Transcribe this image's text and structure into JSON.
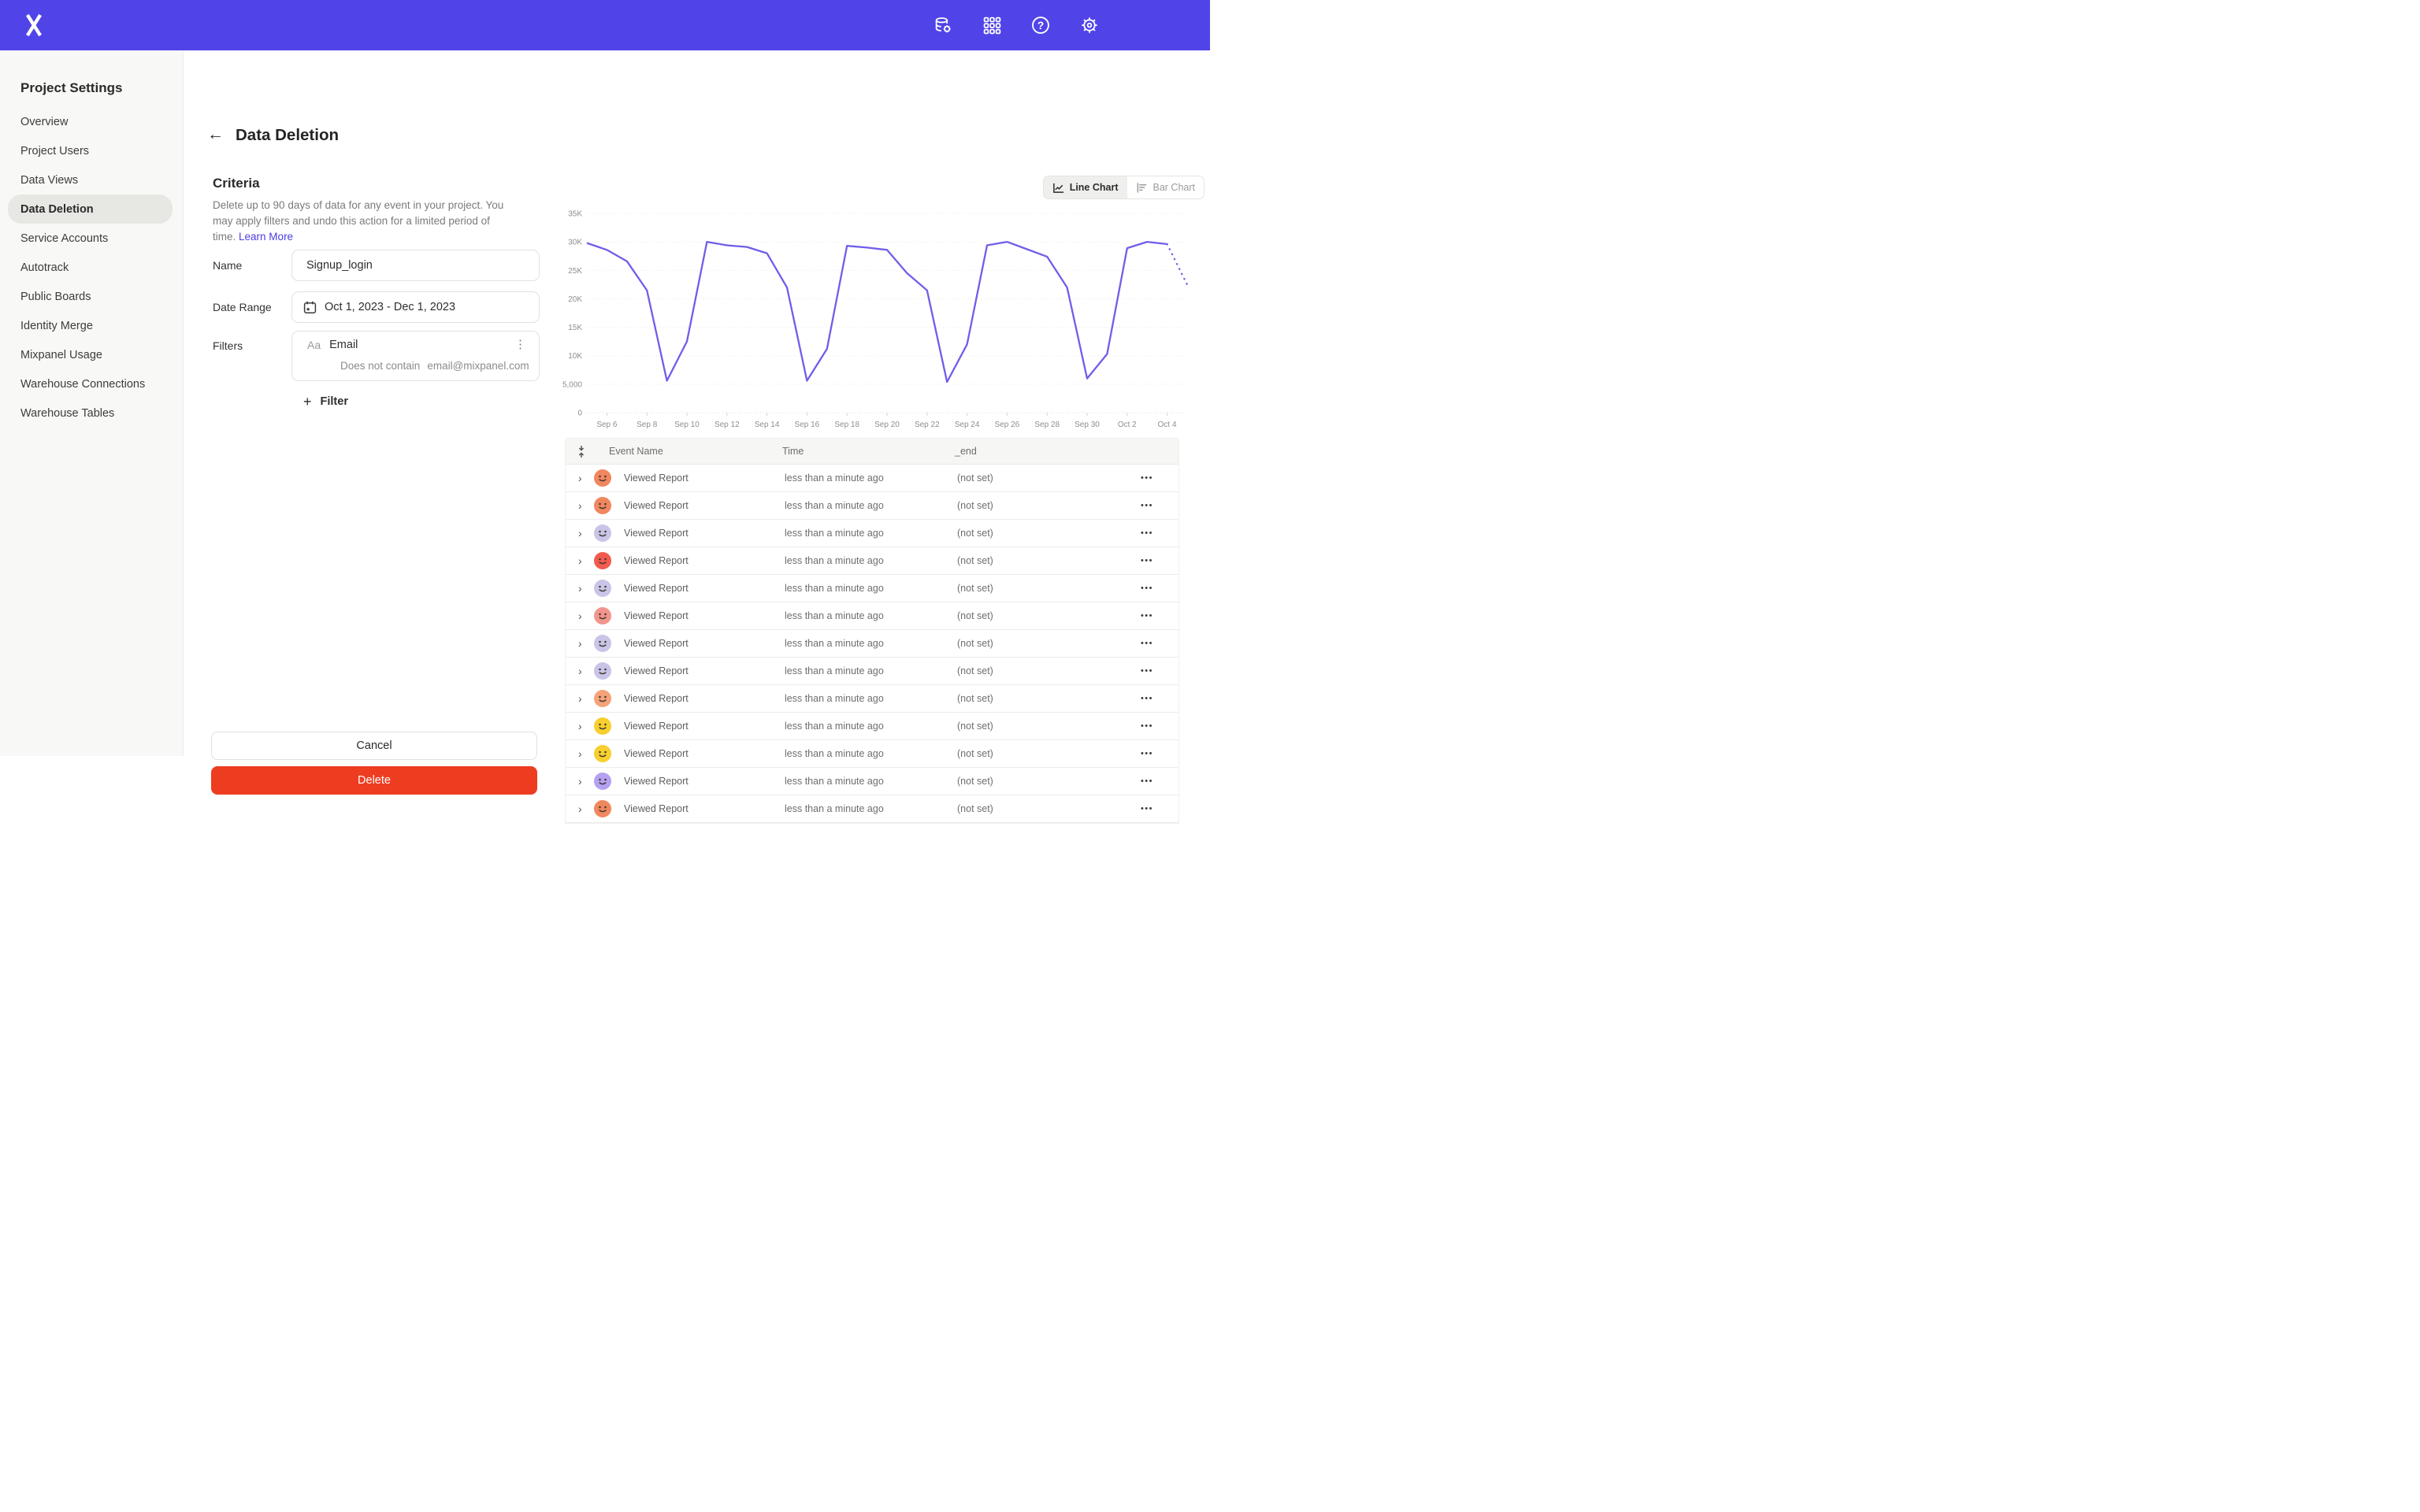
{
  "brand": {
    "topbar_color": "#5044E8",
    "line_color": "#6F5EE9",
    "link_color": "#4B3DE0",
    "delete_red": "#EE3C20"
  },
  "topbar": {
    "logo": "mixpanel-x-logo",
    "icons": [
      "data-settings-icon",
      "apps-grid-icon",
      "help-icon",
      "settings-gear-icon"
    ]
  },
  "sidebar": {
    "title": "Project Settings",
    "items": [
      {
        "label": "Overview",
        "active": false
      },
      {
        "label": "Project Users",
        "active": false
      },
      {
        "label": "Data Views",
        "active": false
      },
      {
        "label": "Data Deletion",
        "active": true
      },
      {
        "label": "Service Accounts",
        "active": false
      },
      {
        "label": "Autotrack",
        "active": false
      },
      {
        "label": "Public Boards",
        "active": false
      },
      {
        "label": "Identity Merge",
        "active": false
      },
      {
        "label": "Mixpanel Usage",
        "active": false
      },
      {
        "label": "Warehouse Connections",
        "active": false
      },
      {
        "label": "Warehouse Tables",
        "active": false
      }
    ]
  },
  "page": {
    "title": "Data Deletion",
    "back_icon": "←"
  },
  "criteria": {
    "heading": "Criteria",
    "description": "Delete up to 90 days of data for any event in your project. You may apply filters and undo this action for a limited period of time.",
    "learn_more": "Learn More",
    "name_label": "Name",
    "name_value": "Signup_login",
    "date_label": "Date Range",
    "date_value": "Oct 1, 2023 - Dec 1, 2023",
    "filters_label": "Filters",
    "filter": {
      "type_badge": "Aa",
      "property": "Email",
      "operator": "Does not contain",
      "value": "email@mixpanel.com"
    },
    "add_filter_label": "Filter",
    "add_filter_plus": "+"
  },
  "buttons": {
    "cancel": "Cancel",
    "delete": "Delete"
  },
  "chart_toggle": {
    "line_label": "Line Chart",
    "bar_label": "Bar Chart",
    "selected": "line"
  },
  "chart_data": {
    "type": "line",
    "x": [
      "Sep 5",
      "Sep 6",
      "Sep 7",
      "Sep 8",
      "Sep 9",
      "Sep 10",
      "Sep 11",
      "Sep 12",
      "Sep 13",
      "Sep 14",
      "Sep 15",
      "Sep 16",
      "Sep 17",
      "Sep 18",
      "Sep 19",
      "Sep 20",
      "Sep 21",
      "Sep 22",
      "Sep 23",
      "Sep 24",
      "Sep 25",
      "Sep 26",
      "Sep 27",
      "Sep 28",
      "Sep 29",
      "Sep 30",
      "Oct 1",
      "Oct 2",
      "Oct 3",
      "Oct 4",
      "Oct 5"
    ],
    "series": [
      {
        "name": "events",
        "values": [
          29800,
          28600,
          26600,
          21500,
          5600,
          12500,
          30000,
          29400,
          29100,
          28000,
          22000,
          5600,
          11200,
          29300,
          29000,
          28600,
          24500,
          21500,
          5400,
          12000,
          29400,
          30000,
          28700,
          27400,
          22000,
          6000,
          10300,
          28900,
          30000,
          29600,
          22500
        ]
      }
    ],
    "dotted_tail_points": 1,
    "xtick_labels": [
      "Sep 6",
      "Sep 8",
      "Sep 10",
      "Sep 12",
      "Sep 14",
      "Sep 16",
      "Sep 18",
      "Sep 20",
      "Sep 22",
      "Sep 24",
      "Sep 26",
      "Sep 28",
      "Sep 30",
      "Oct 2",
      "Oct 4"
    ],
    "ytick_labels": [
      "0",
      "5,000",
      "10K",
      "15K",
      "20K",
      "25K",
      "30K",
      "35K"
    ],
    "ytick_values": [
      0,
      5000,
      10000,
      15000,
      20000,
      25000,
      30000,
      35000
    ],
    "ylim": [
      0,
      35000
    ],
    "grid": "horizontal-dotted",
    "legend": "none",
    "line_color": "#6F5EE9"
  },
  "table": {
    "headers": [
      "Event Name",
      "Time",
      "_end"
    ],
    "sort_icon": "collapse-arrows",
    "row_actions_icon": "•••",
    "expand_icon": "›",
    "rows": [
      {
        "event": "Viewed Report",
        "time": "less than a minute ago",
        "end": "(not set)",
        "avatar_color": "#F0875F"
      },
      {
        "event": "Viewed Report",
        "time": "less than a minute ago",
        "end": "(not set)",
        "avatar_color": "#F0875F"
      },
      {
        "event": "Viewed Report",
        "time": "less than a minute ago",
        "end": "(not set)",
        "avatar_color": "#C9C5E8"
      },
      {
        "event": "Viewed Report",
        "time": "less than a minute ago",
        "end": "(not set)",
        "avatar_color": "#F25B4E"
      },
      {
        "event": "Viewed Report",
        "time": "less than a minute ago",
        "end": "(not set)",
        "avatar_color": "#C9C5E8"
      },
      {
        "event": "Viewed Report",
        "time": "less than a minute ago",
        "end": "(not set)",
        "avatar_color": "#F2958D"
      },
      {
        "event": "Viewed Report",
        "time": "less than a minute ago",
        "end": "(not set)",
        "avatar_color": "#C9C5E8"
      },
      {
        "event": "Viewed Report",
        "time": "less than a minute ago",
        "end": "(not set)",
        "avatar_color": "#C9C5E8"
      },
      {
        "event": "Viewed Report",
        "time": "less than a minute ago",
        "end": "(not set)",
        "avatar_color": "#F5A379"
      },
      {
        "event": "Viewed Report",
        "time": "less than a minute ago",
        "end": "(not set)",
        "avatar_color": "#F7CF2E"
      },
      {
        "event": "Viewed Report",
        "time": "less than a minute ago",
        "end": "(not set)",
        "avatar_color": "#F7CF2E"
      },
      {
        "event": "Viewed Report",
        "time": "less than a minute ago",
        "end": "(not set)",
        "avatar_color": "#B4A1F2"
      },
      {
        "event": "Viewed Report",
        "time": "less than a minute ago",
        "end": "(not set)",
        "avatar_color": "#F0875F"
      }
    ]
  }
}
